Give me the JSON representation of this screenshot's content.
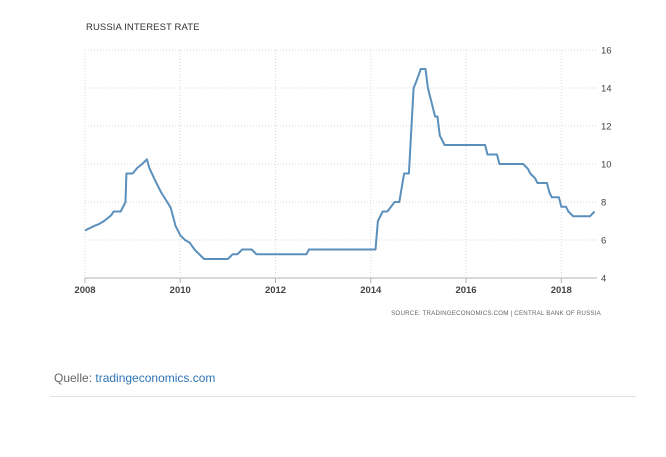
{
  "chart_data": {
    "type": "line",
    "title": "RUSSIA INTEREST RATE",
    "source": "SOURCE: TRADINGECONOMICS.COM | CENTRAL BANK OF RUSSIA",
    "x_ticks": [
      "2008",
      "2010",
      "2012",
      "2014",
      "2016",
      "2018"
    ],
    "y_ticks": [
      4,
      6,
      8,
      10,
      12,
      14,
      16
    ],
    "xlim": [
      2008.0,
      2018.75
    ],
    "ylim": [
      4,
      16
    ],
    "grid": true,
    "line_color": "#5b8fbc",
    "series": [
      {
        "x": [
          2008.0,
          2008.2,
          2008.3,
          2008.4,
          2008.45,
          2008.55,
          2008.6,
          2008.75,
          2008.8,
          2008.85,
          2008.87,
          2009.0,
          2009.1,
          2009.2,
          2009.3,
          2009.35,
          2009.45,
          2009.5,
          2009.6,
          2009.7,
          2009.8,
          2009.9,
          2010.0,
          2010.1,
          2010.2,
          2010.3,
          2010.4,
          2010.5,
          2010.6,
          2011.0,
          2011.1,
          2011.2,
          2011.3,
          2011.4,
          2011.5,
          2011.6,
          2011.7,
          2012.0,
          2012.5,
          2012.65,
          2012.7,
          2013.0,
          2013.5,
          2014.1,
          2014.15,
          2014.25,
          2014.35,
          2014.5,
          2014.6,
          2014.7,
          2014.8,
          2014.9,
          2014.95,
          2015.05,
          2015.15,
          2015.2,
          2015.35,
          2015.4,
          2015.45,
          2015.55,
          2015.6,
          2016.0,
          2016.4,
          2016.45,
          2016.65,
          2016.7,
          2017.0,
          2017.2,
          2017.3,
          2017.35,
          2017.45,
          2017.5,
          2017.7,
          2017.75,
          2017.8,
          2017.95,
          2018.0,
          2018.1,
          2018.15,
          2018.25,
          2018.3,
          2018.6,
          2018.7
        ],
        "y": [
          6.5,
          6.75,
          6.85,
          7.0,
          7.1,
          7.3,
          7.5,
          7.5,
          7.75,
          8.0,
          9.5,
          9.5,
          9.8,
          10.0,
          10.25,
          9.8,
          9.25,
          9.0,
          8.5,
          8.1,
          7.7,
          6.75,
          6.25,
          6.0,
          5.85,
          5.5,
          5.25,
          5.0,
          5.0,
          5.0,
          5.25,
          5.25,
          5.5,
          5.5,
          5.5,
          5.25,
          5.25,
          5.25,
          5.25,
          5.25,
          5.5,
          5.5,
          5.5,
          5.5,
          7.0,
          7.5,
          7.5,
          8.0,
          8.0,
          9.5,
          9.5,
          14.0,
          14.3,
          15.0,
          15.0,
          14.0,
          12.5,
          12.5,
          11.5,
          11.0,
          11.0,
          11.0,
          11.0,
          10.5,
          10.5,
          10.0,
          10.0,
          10.0,
          9.75,
          9.5,
          9.25,
          9.0,
          9.0,
          8.5,
          8.25,
          8.25,
          7.75,
          7.75,
          7.5,
          7.25,
          7.25,
          7.25,
          7.5
        ]
      }
    ]
  },
  "caption": {
    "prefix": "Quelle: ",
    "link": "tradingeconomics.com"
  }
}
